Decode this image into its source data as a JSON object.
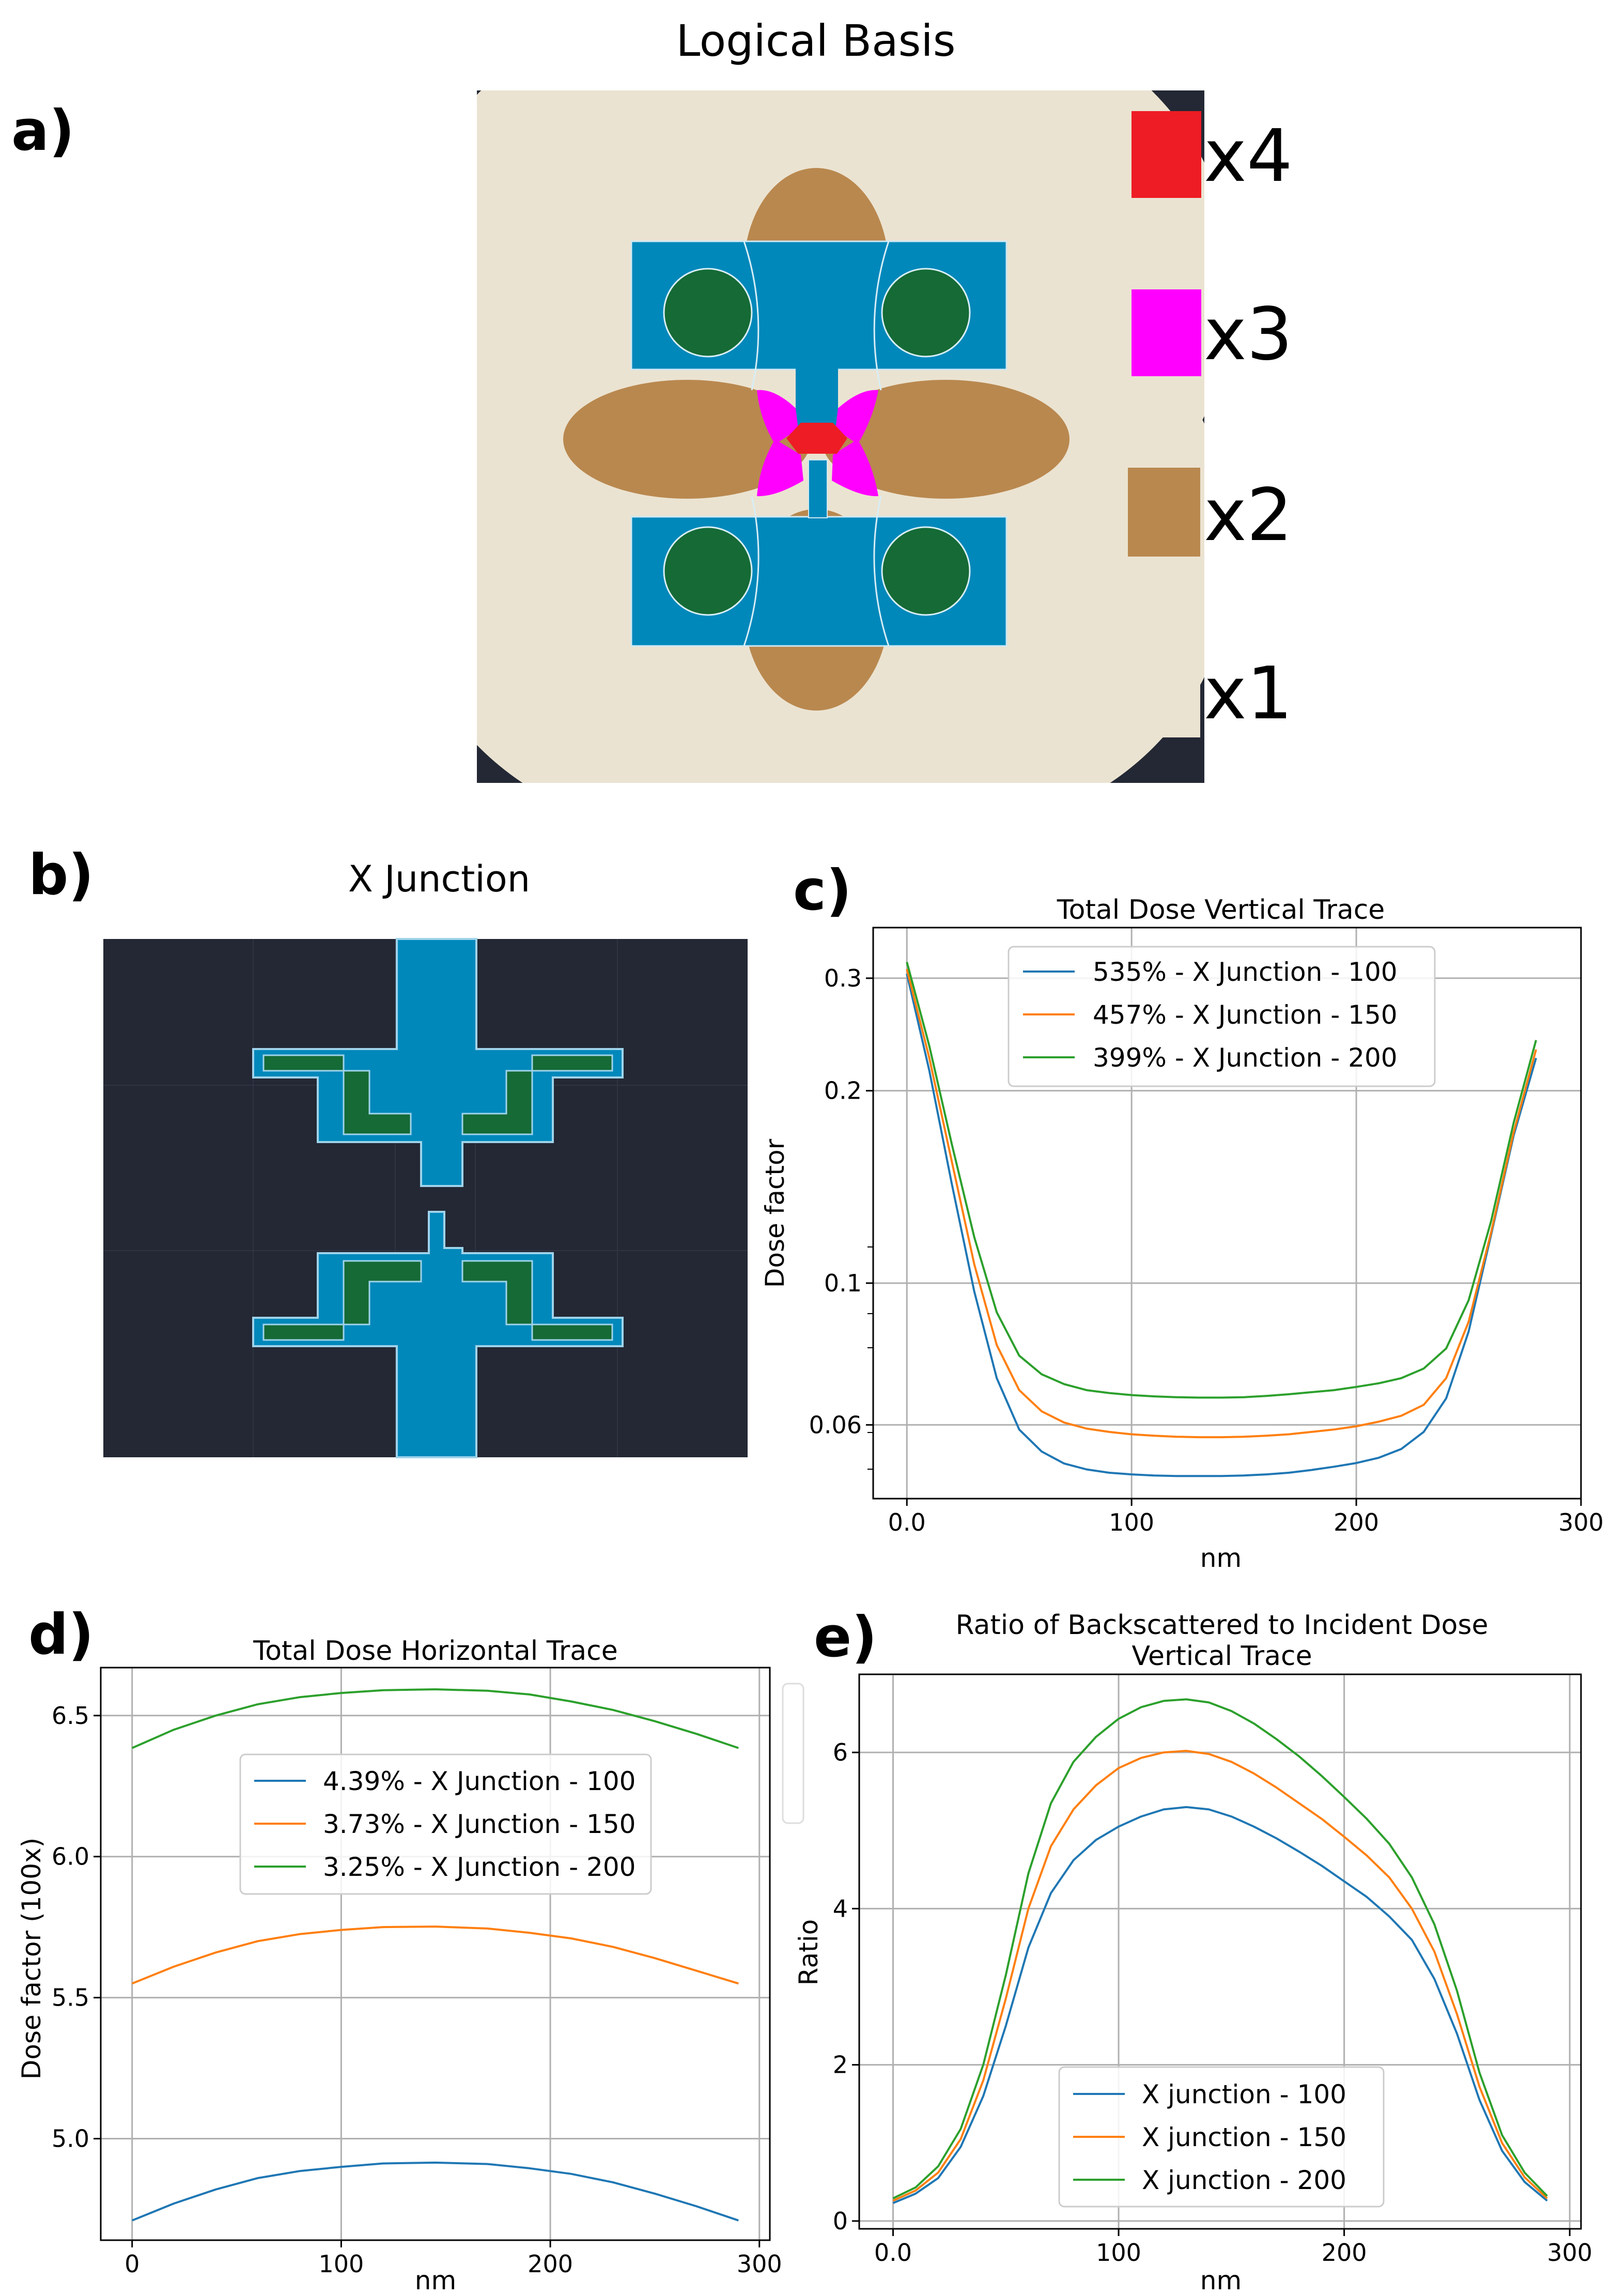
{
  "figure": {
    "panel_labels": [
      "a)",
      "b)",
      "c)",
      "d)",
      "e)"
    ]
  },
  "panel_a": {
    "title": "Logical Basis",
    "legend": [
      {
        "label": "x4",
        "color": "#ee1c24"
      },
      {
        "label": "x3",
        "color": "#ff00ff"
      },
      {
        "label": "x2",
        "color": "#b9884f"
      },
      {
        "label": "x1",
        "color": "#ebe3d1"
      }
    ],
    "colors": {
      "background": "#232834",
      "fill": "#0088bb",
      "pad": "#156a35",
      "grid": "#2e3442"
    }
  },
  "panel_b": {
    "title": "X Junction"
  },
  "chart_data": [
    {
      "id": "c",
      "type": "line",
      "title": "Total Dose Vertical Trace",
      "xlabel": "nm",
      "ylabel": "Dose factor",
      "yscale": "log",
      "xlim": [
        -15,
        300
      ],
      "ylim": [
        0.046,
        0.36
      ],
      "xticks": [
        0,
        100,
        200,
        300
      ],
      "xtick_labels": [
        "0.0",
        "100",
        "200",
        "300"
      ],
      "yticks": [
        0.06,
        0.1,
        0.2,
        0.3
      ],
      "ytick_labels": [
        "0.06",
        "0.1",
        "0.2",
        "0.3"
      ],
      "legend_position": "upper-center",
      "x": [
        0,
        10,
        20,
        30,
        40,
        50,
        60,
        70,
        80,
        90,
        100,
        110,
        120,
        130,
        140,
        150,
        160,
        170,
        180,
        190,
        200,
        210,
        220,
        230,
        240,
        250,
        260,
        270,
        280
      ],
      "series": [
        {
          "name": "535% - X Junction - 100",
          "color": "#1f77b4",
          "values": [
            0.305,
            0.215,
            0.143,
            0.097,
            0.071,
            0.059,
            0.0545,
            0.0522,
            0.0511,
            0.0505,
            0.0502,
            0.05,
            0.0499,
            0.0499,
            0.0499,
            0.05,
            0.0502,
            0.0505,
            0.051,
            0.0516,
            0.0523,
            0.0533,
            0.055,
            0.0585,
            0.066,
            0.084,
            0.119,
            0.17,
            0.225
          ]
        },
        {
          "name": "457% - X Junction - 150",
          "color": "#ff7f0e",
          "values": [
            0.31,
            0.225,
            0.155,
            0.107,
            0.08,
            0.068,
            0.063,
            0.0605,
            0.0592,
            0.0585,
            0.058,
            0.0577,
            0.0575,
            0.0574,
            0.0574,
            0.0575,
            0.0577,
            0.058,
            0.0585,
            0.059,
            0.0597,
            0.0607,
            0.062,
            0.0645,
            0.071,
            0.087,
            0.12,
            0.172,
            0.232
          ]
        },
        {
          "name": "399% - X Junction - 200",
          "color": "#2ca02c",
          "values": [
            0.318,
            0.235,
            0.165,
            0.118,
            0.09,
            0.077,
            0.072,
            0.0695,
            0.068,
            0.0673,
            0.0668,
            0.0665,
            0.0663,
            0.0662,
            0.0662,
            0.0663,
            0.0666,
            0.067,
            0.0675,
            0.068,
            0.0688,
            0.0697,
            0.071,
            0.0735,
            0.079,
            0.094,
            0.125,
            0.178,
            0.24
          ]
        }
      ]
    },
    {
      "id": "d",
      "type": "line",
      "title": "Total Dose Horizontal Trace",
      "xlabel": "nm",
      "ylabel": "Dose factor (100x)",
      "xlim": [
        -15,
        305
      ],
      "ylim": [
        4.64,
        6.67
      ],
      "xticks": [
        0,
        100,
        200,
        300
      ],
      "xtick_labels": [
        "0",
        "100",
        "200",
        "300"
      ],
      "yticks": [
        5.0,
        5.5,
        6.0,
        6.5
      ],
      "ytick_labels": [
        "5.0",
        "5.5",
        "6.0",
        "6.5"
      ],
      "legend_position": "center",
      "x": [
        0,
        20,
        40,
        60,
        80,
        100,
        120,
        145,
        170,
        190,
        210,
        230,
        250,
        270,
        290
      ],
      "series": [
        {
          "name": "4.39% - X Junction - 100",
          "color": "#1f77b4",
          "values": [
            4.71,
            4.77,
            4.82,
            4.86,
            4.885,
            4.9,
            4.912,
            4.915,
            4.91,
            4.895,
            4.875,
            4.845,
            4.805,
            4.76,
            4.71
          ]
        },
        {
          "name": "3.73% - X Junction - 150",
          "color": "#ff7f0e",
          "values": [
            5.55,
            5.61,
            5.66,
            5.7,
            5.725,
            5.74,
            5.75,
            5.752,
            5.745,
            5.73,
            5.71,
            5.68,
            5.64,
            5.595,
            5.55
          ]
        },
        {
          "name": "3.25% - X Junction - 200",
          "color": "#2ca02c",
          "values": [
            6.385,
            6.45,
            6.5,
            6.54,
            6.565,
            6.58,
            6.59,
            6.593,
            6.588,
            6.575,
            6.55,
            6.52,
            6.48,
            6.435,
            6.385
          ]
        }
      ]
    },
    {
      "id": "e",
      "type": "line",
      "title": "Ratio of Backscattered to Incident Dose",
      "subtitle": "Vertical Trace",
      "xlabel": "nm",
      "ylabel": "Ratio",
      "xlim": [
        -15,
        305
      ],
      "ylim": [
        -0.1,
        7.0
      ],
      "xticks": [
        0,
        100,
        200,
        300
      ],
      "xtick_labels": [
        "0.0",
        "100",
        "200",
        "300"
      ],
      "yticks": [
        0,
        2,
        4,
        6
      ],
      "ytick_labels": [
        "0",
        "2",
        "4",
        "6"
      ],
      "legend_position": "lower-center",
      "x": [
        0,
        10,
        20,
        30,
        40,
        50,
        60,
        70,
        80,
        90,
        100,
        110,
        120,
        130,
        140,
        150,
        160,
        170,
        180,
        190,
        200,
        210,
        220,
        230,
        240,
        250,
        260,
        270,
        280,
        290
      ],
      "series": [
        {
          "name": "X junction - 100",
          "color": "#1f77b4",
          "values": [
            0.23,
            0.35,
            0.55,
            0.95,
            1.6,
            2.5,
            3.5,
            4.2,
            4.62,
            4.88,
            5.05,
            5.18,
            5.27,
            5.3,
            5.27,
            5.18,
            5.05,
            4.9,
            4.73,
            4.55,
            4.35,
            4.15,
            3.9,
            3.6,
            3.1,
            2.4,
            1.55,
            0.9,
            0.5,
            0.26
          ]
        },
        {
          "name": "X junction - 150",
          "color": "#ff7f0e",
          "values": [
            0.26,
            0.39,
            0.62,
            1.05,
            1.8,
            2.85,
            4.0,
            4.8,
            5.27,
            5.58,
            5.8,
            5.93,
            6.0,
            6.02,
            5.98,
            5.88,
            5.73,
            5.55,
            5.35,
            5.15,
            4.92,
            4.68,
            4.4,
            4.0,
            3.45,
            2.65,
            1.72,
            1.0,
            0.56,
            0.29
          ]
        },
        {
          "name": "X junction - 200",
          "color": "#2ca02c",
          "values": [
            0.29,
            0.43,
            0.7,
            1.18,
            2.0,
            3.15,
            4.45,
            5.35,
            5.88,
            6.2,
            6.43,
            6.58,
            6.66,
            6.68,
            6.64,
            6.53,
            6.37,
            6.17,
            5.95,
            5.7,
            5.43,
            5.15,
            4.83,
            4.4,
            3.8,
            2.95,
            1.9,
            1.1,
            0.62,
            0.32
          ]
        }
      ]
    }
  ]
}
